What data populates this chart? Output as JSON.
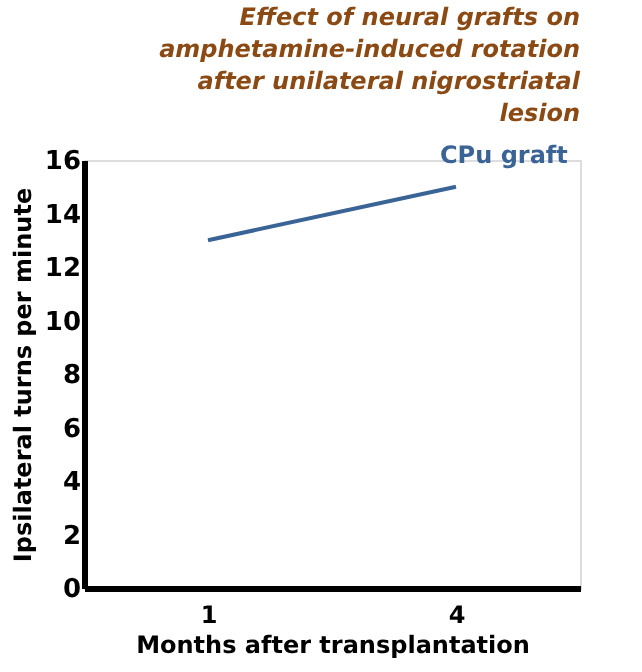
{
  "chart_data": {
    "type": "line",
    "title": "Effect of neural grafts on amphetamine-induced rotation after unilateral nigrostriatal lesion",
    "xlabel": "Months after transplantation",
    "ylabel": "Ipsilateral turns per minute",
    "categories": [
      "1",
      "4"
    ],
    "series": [
      {
        "name": "CPu graft",
        "color": "#3a6496",
        "values": [
          13,
          15
        ]
      }
    ],
    "ylim": [
      0,
      16
    ],
    "yticks": [
      0,
      2,
      4,
      6,
      8,
      10,
      12,
      14,
      16
    ],
    "grid": false,
    "marker": "none",
    "line_style": "solid"
  }
}
